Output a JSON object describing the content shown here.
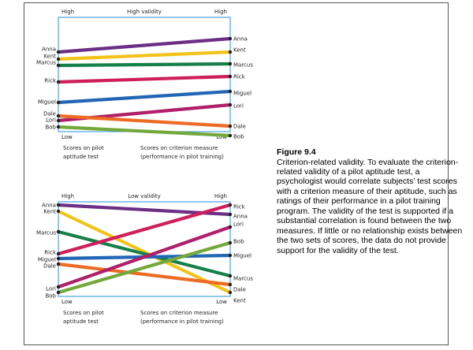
{
  "caption": {
    "title": "Figure 9.4",
    "body": "Criterion-related validity. To evaluate the criterion-related validity of a pilot aptitude test, a psychologist would correlate subjects’ test scores with a criterion measure of their aptitude, such as ratings of their performance in a pilot training program. The validity of the test is supported if a substantial correlation is found between the two measures. If little or no relationship exists between the two sets of scores, the data do not provide support for the validity of the test."
  },
  "panels": [
    {
      "id": "high",
      "title": "High validity",
      "left_high": "High",
      "right_high": "High",
      "left_low": "Low",
      "right_low": "Low",
      "xlabel_left": [
        "Scores on pilot",
        "aptitude test"
      ],
      "xlabel_right": [
        "Scores on criterion measure",
        "(performance in pilot training)"
      ],
      "people": [
        {
          "name": "Anna",
          "left": "Anna",
          "right": "Anna",
          "color": "#6b2f86"
        },
        {
          "name": "Kent",
          "left": "Kent",
          "right": "Kent",
          "color": "#f2c31a"
        },
        {
          "name": "Marcus",
          "left": "Marcus",
          "right": "Marcus",
          "color": "#15804a"
        },
        {
          "name": "Rick",
          "left": "Rick",
          "right": "Rick",
          "color": "#cf1f5b"
        },
        {
          "name": "Miguel",
          "left": "Miguel",
          "right": "Miguel",
          "color": "#2366b5"
        },
        {
          "name": "Lori",
          "left": "Lori",
          "right": "Lori",
          "color": "#b01f6a"
        },
        {
          "name": "Dale",
          "left": "Dale",
          "right": "Dale",
          "color": "#ee6b24"
        },
        {
          "name": "Bob",
          "left": "Bob",
          "right": "Bob",
          "color": "#74a83c"
        }
      ]
    },
    {
      "id": "low",
      "title": "Low validity",
      "left_high": "High",
      "right_high": "High",
      "left_low": "Low",
      "right_low": "Low",
      "xlabel_left": [
        "Scores on pilot",
        "aptitude test"
      ],
      "xlabel_right": [
        "Scores on criterion measure",
        "(performance in pilot training)"
      ],
      "people": [
        {
          "name": "Anna",
          "left": "Anna",
          "right": "Anna",
          "color": "#6b2f86"
        },
        {
          "name": "Kent",
          "left": "Kent",
          "right": "Kent",
          "color": "#f2c31a"
        },
        {
          "name": "Marcus",
          "left": "Marcus",
          "right": "Marcus",
          "color": "#15804a"
        },
        {
          "name": "Rick",
          "left": "Rick",
          "right": "Rick",
          "color": "#cf1f5b"
        },
        {
          "name": "Miguel",
          "left": "Miguel",
          "right": "Miguel",
          "color": "#2366b5"
        },
        {
          "name": "Dale",
          "left": "Dale",
          "right": "Dale",
          "color": "#ee6b24"
        },
        {
          "name": "Lori",
          "left": "Lori",
          "right": "Lori",
          "color": "#b01f6a"
        },
        {
          "name": "Bob",
          "left": "Bob",
          "right": "Bob",
          "color": "#74a83c"
        }
      ]
    }
  ]
}
